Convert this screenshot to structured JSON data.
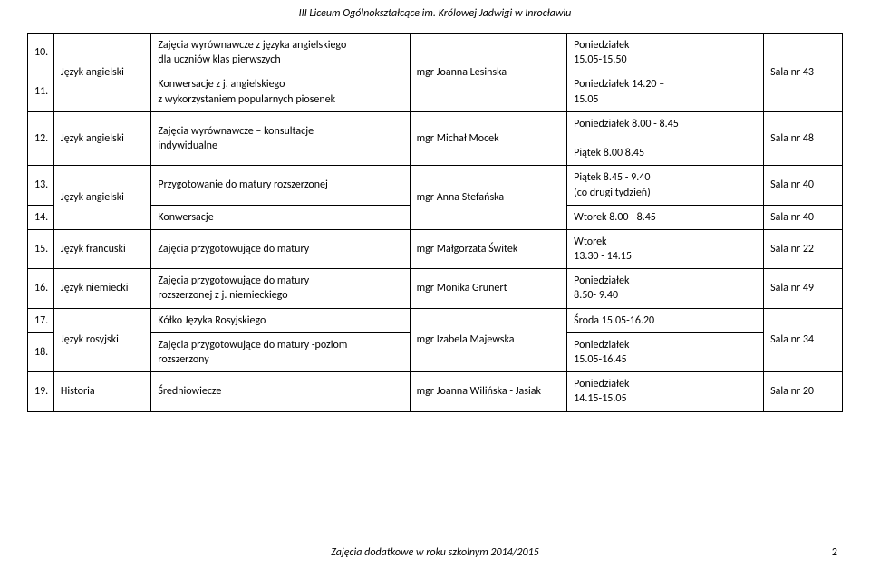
{
  "header": {
    "text": "III Liceum Ogólnokształcące im. Królowej Jadwigi w Inrocławiu"
  },
  "footer": {
    "text": "Zajęcia dodatkowe w roku szkolnym 2014/2015",
    "page": "2"
  },
  "table": {
    "columns": {
      "num_width": 28,
      "subj_width": 104,
      "desc_width": 276,
      "tchr_width": 168,
      "when_width": 210,
      "room_width": 84
    },
    "rows": [
      {
        "num": "10.",
        "subject": "Język angielski",
        "subject_rowspan": 2,
        "desc": "Zajęcia wyrównawcze z języka angielskiego\ndla uczniów klas pierwszych",
        "teacher": "mgr Joanna Lesinska",
        "teacher_rowspan": 2,
        "when": "Poniedziałek\n15.05-15.50",
        "room": "Sala nr 43",
        "room_rowspan": 2
      },
      {
        "num": "11.",
        "desc": "Konwersacje z j. angielskiego\nz wykorzystaniem popularnych piosenek",
        "when": "Poniedziałek 14.20 –\n15.05"
      },
      {
        "num": "12.",
        "subject": "Język angielski",
        "desc": "Zajęcia wyrównawcze – konsultacje\nindywidualne",
        "teacher": "mgr Michał Mocek",
        "when": "Poniedziałek 8.00 - 8.45\n\nPiątek 8.00 8.45",
        "room": "Sala nr 48"
      },
      {
        "num": "13.",
        "subject": "Język angielski",
        "subject_rowspan": 2,
        "desc": "Przygotowanie do matury rozszerzonej",
        "teacher": "mgr Anna Stefańska",
        "teacher_rowspan": 2,
        "when": "Piątek 8.45 - 9.40\n(co drugi tydzień)",
        "room": "Sala nr 40"
      },
      {
        "num": "14.",
        "desc": "Konwersacje",
        "when": "Wtorek 8.00 - 8.45",
        "room": "Sala nr 40"
      },
      {
        "num": "15.",
        "subject": "Język francuski",
        "desc": "Zajęcia przygotowujące do matury",
        "teacher": "mgr Małgorzata Świtek",
        "when": "Wtorek\n13.30 - 14.15",
        "room": "Sala nr 22"
      },
      {
        "num": "16.",
        "subject": "Język niemiecki",
        "desc": "Zajęcia przygotowujące do matury\nrozszerzonej z j. niemieckiego",
        "teacher": "mgr Monika Grunert",
        "when": "Poniedziałek\n8.50- 9.40",
        "room": "Sala nr  49"
      },
      {
        "num": "17.",
        "subject": "Język rosyjski",
        "subject_rowspan": 2,
        "desc": "Kółko Języka Rosyjskiego",
        "teacher": "mgr Izabela Majewska",
        "teacher_rowspan": 2,
        "when": "Środa 15.05-16.20",
        "room": "Sala nr 34",
        "room_rowspan": 2
      },
      {
        "num": "18.",
        "desc": "Zajęcia przygotowujące do matury -poziom\nrozszerzony",
        "when": "Poniedziałek\n15.05-16.45"
      },
      {
        "num": "19.",
        "subject": "Historia",
        "desc": "Średniowiecze",
        "teacher": "mgr  Joanna Wilińska - Jasiak",
        "when": "Poniedziałek\n14.15-15.05",
        "room": "Sala nr 20"
      }
    ]
  }
}
